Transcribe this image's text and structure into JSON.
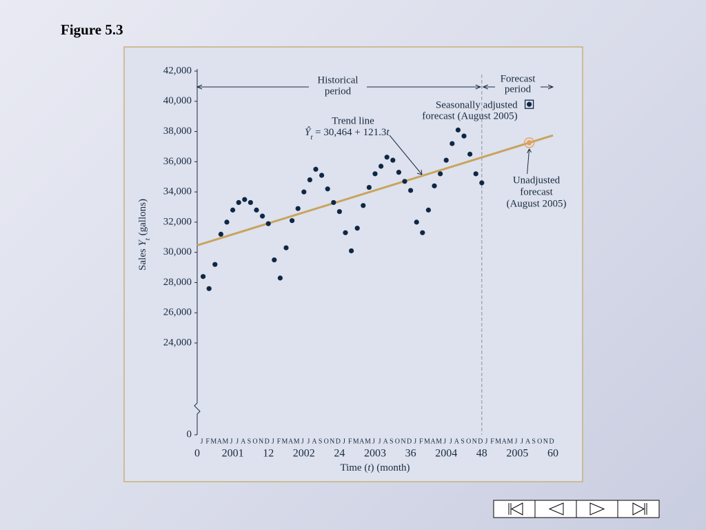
{
  "title": "Figure 5.3",
  "chart_data": {
    "type": "scatter",
    "x": [
      1,
      2,
      3,
      4,
      5,
      6,
      7,
      8,
      9,
      10,
      11,
      12,
      13,
      14,
      15,
      16,
      17,
      18,
      19,
      20,
      21,
      22,
      23,
      24,
      25,
      26,
      27,
      28,
      29,
      30,
      31,
      32,
      33,
      34,
      35,
      36,
      37,
      38,
      39,
      40,
      41,
      42,
      43,
      44,
      45,
      46,
      47,
      48
    ],
    "series": [
      {
        "color": "#0f2744",
        "values": [
          28400,
          27600,
          29200,
          31200,
          32000,
          32800,
          33300,
          33500,
          33300,
          32800,
          32400,
          31900,
          29500,
          28300,
          30300,
          32100,
          32900,
          34000,
          34800,
          35500,
          35100,
          34200,
          33300,
          32700,
          31300,
          30100,
          31600,
          33100,
          34300,
          35200,
          35700,
          36300,
          36100,
          35300,
          34700,
          34100,
          32000,
          31300,
          32800,
          34400,
          35200,
          36100,
          37200,
          38100,
          37700,
          36500,
          35200,
          34600
        ]
      }
    ],
    "trend": {
      "color": "#c9a45e",
      "x": [
        0,
        60
      ],
      "values": [
        30464,
        37742
      ]
    },
    "xlim": [
      0,
      60
    ],
    "xticks": [
      0,
      12,
      24,
      36,
      48,
      60
    ],
    "ylim": [
      0,
      42000
    ],
    "yticks": [
      0,
      {
        "value": 24000,
        "label": "24,000"
      },
      {
        "value": 26000,
        "label": "26,000"
      },
      {
        "value": 28000,
        "label": "28,000"
      },
      {
        "value": 30000,
        "label": "30,000"
      },
      {
        "value": 32000,
        "label": "32,000"
      },
      {
        "value": 34000,
        "label": "34,000"
      },
      {
        "value": 36000,
        "label": "36,000"
      },
      {
        "value": 38000,
        "label": "38,000"
      },
      {
        "value": 40000,
        "label": "40,000"
      },
      {
        "value": 42000,
        "label": "42,000"
      }
    ],
    "y_break": true,
    "month_labels": [
      "J",
      "F",
      "M",
      "A",
      "M",
      "J",
      "J",
      "A",
      "S",
      "O",
      "N",
      "D"
    ],
    "year_labels": [
      "2001",
      "2002",
      "2003",
      "2004",
      "2005"
    ],
    "x_label": [
      "Time (",
      "t",
      ") (month)"
    ],
    "y_label": [
      "Sales ",
      "Y",
      "t",
      " (gallons)"
    ],
    "forecast_boundary": 48,
    "historical_label": [
      "Historical",
      "period"
    ],
    "forecast_label": [
      "Forecast",
      "period"
    ],
    "trend_label": [
      "Trend line"
    ],
    "trend_equation": [
      "Ŷ",
      "t",
      " = 30,464 + 121.3",
      "t"
    ],
    "seasonal_forecast": {
      "x": 56,
      "value": 39800,
      "label": [
        "Seasonally adjusted",
        "forecast (August 2005)"
      ]
    },
    "unadjusted_forecast": {
      "x": 56,
      "value": 37257,
      "label": [
        "Unadjusted",
        "forecast",
        "(August 2005)"
      ]
    }
  }
}
